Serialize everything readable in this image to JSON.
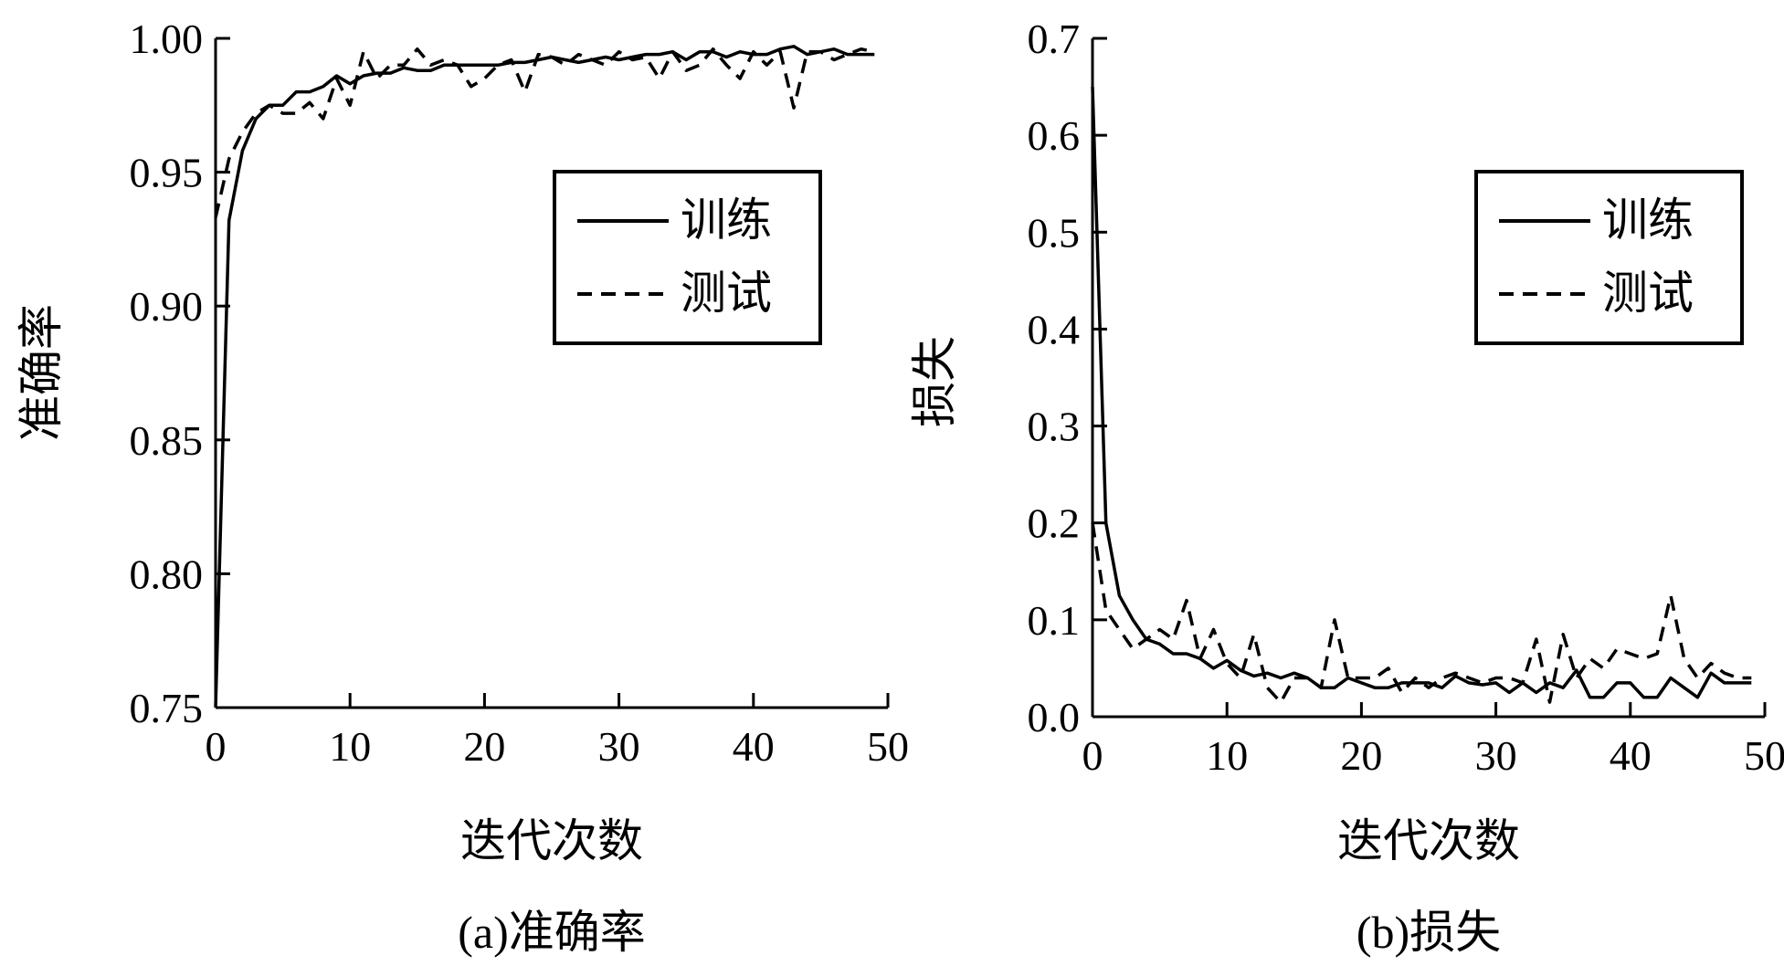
{
  "chart_data": [
    {
      "type": "line",
      "title": "",
      "caption": "(a)准确率",
      "xlabel": "迭代次数",
      "ylabel": "准确率",
      "xlim": [
        0,
        50
      ],
      "ylim": [
        0.75,
        1.0
      ],
      "xticks": [
        "0",
        "10",
        "20",
        "30",
        "40",
        "50"
      ],
      "yticks": [
        "0.75",
        "0.80",
        "0.85",
        "0.90",
        "0.95",
        "1.00"
      ],
      "grid": false,
      "legend": "right",
      "series": [
        {
          "name": "训练",
          "style": "solid",
          "x": [
            0,
            1,
            2,
            3,
            4,
            5,
            6,
            7,
            8,
            9,
            10,
            11,
            12,
            13,
            14,
            15,
            16,
            17,
            18,
            19,
            20,
            21,
            22,
            23,
            24,
            25,
            26,
            27,
            28,
            29,
            30,
            31,
            32,
            33,
            34,
            35,
            36,
            37,
            38,
            39,
            40,
            41,
            42,
            43,
            44,
            45,
            46,
            47,
            48,
            49
          ],
          "values": [
            0.75,
            0.932,
            0.958,
            0.97,
            0.975,
            0.975,
            0.98,
            0.98,
            0.982,
            0.986,
            0.983,
            0.986,
            0.987,
            0.987,
            0.989,
            0.988,
            0.988,
            0.99,
            0.99,
            0.99,
            0.99,
            0.99,
            0.991,
            0.991,
            0.992,
            0.993,
            0.992,
            0.991,
            0.992,
            0.993,
            0.992,
            0.993,
            0.994,
            0.994,
            0.995,
            0.992,
            0.995,
            0.995,
            0.993,
            0.995,
            0.994,
            0.994,
            0.996,
            0.997,
            0.994,
            0.995,
            0.996,
            0.994,
            0.994,
            0.994
          ]
        },
        {
          "name": "测试",
          "style": "dashed",
          "x": [
            0,
            1,
            2,
            3,
            4,
            5,
            6,
            7,
            8,
            9,
            10,
            11,
            12,
            13,
            14,
            15,
            16,
            17,
            18,
            19,
            20,
            21,
            22,
            23,
            24,
            25,
            26,
            27,
            28,
            29,
            30,
            31,
            32,
            33,
            34,
            35,
            36,
            37,
            38,
            39,
            40,
            41,
            42,
            43,
            44,
            45,
            46,
            47,
            48,
            49
          ],
          "values": [
            0.933,
            0.955,
            0.965,
            0.972,
            0.975,
            0.972,
            0.972,
            0.976,
            0.97,
            0.985,
            0.975,
            0.995,
            0.985,
            0.99,
            0.99,
            0.996,
            0.99,
            0.992,
            0.99,
            0.982,
            0.985,
            0.99,
            0.992,
            0.98,
            0.994,
            0.993,
            0.99,
            0.994,
            0.992,
            0.99,
            0.995,
            0.992,
            0.993,
            0.985,
            0.995,
            0.988,
            0.99,
            0.996,
            0.99,
            0.985,
            0.995,
            0.99,
            0.995,
            0.974,
            0.995,
            0.995,
            0.992,
            0.994,
            0.996,
            0.995
          ]
        }
      ]
    },
    {
      "type": "line",
      "title": "",
      "caption": "(b)损失",
      "xlabel": "迭代次数",
      "ylabel": "损失",
      "xlim": [
        0,
        50
      ],
      "ylim": [
        0.0,
        0.7
      ],
      "xticks": [
        "0",
        "10",
        "20",
        "30",
        "40",
        "50"
      ],
      "yticks": [
        "0.0",
        "0.1",
        "0.2",
        "0.3",
        "0.4",
        "0.5",
        "0.6",
        "0.7"
      ],
      "grid": false,
      "legend": "top-right",
      "series": [
        {
          "name": "训练",
          "style": "solid",
          "x": [
            0,
            1,
            2,
            3,
            4,
            5,
            6,
            7,
            8,
            9,
            10,
            11,
            12,
            13,
            14,
            15,
            16,
            17,
            18,
            19,
            20,
            21,
            22,
            23,
            24,
            25,
            26,
            27,
            28,
            29,
            30,
            31,
            32,
            33,
            34,
            35,
            36,
            37,
            38,
            39,
            40,
            41,
            42,
            43,
            44,
            45,
            46,
            47,
            48,
            49
          ],
          "values": [
            0.65,
            0.2,
            0.125,
            0.1,
            0.08,
            0.075,
            0.065,
            0.065,
            0.06,
            0.05,
            0.058,
            0.048,
            0.042,
            0.045,
            0.04,
            0.045,
            0.04,
            0.03,
            0.03,
            0.04,
            0.035,
            0.03,
            0.03,
            0.035,
            0.035,
            0.035,
            0.03,
            0.042,
            0.035,
            0.033,
            0.035,
            0.025,
            0.035,
            0.025,
            0.035,
            0.03,
            0.048,
            0.02,
            0.02,
            0.035,
            0.035,
            0.02,
            0.02,
            0.04,
            0.03,
            0.02,
            0.045,
            0.035,
            0.035,
            0.035
          ]
        },
        {
          "name": "测试",
          "style": "dashed",
          "x": [
            0,
            1,
            2,
            3,
            4,
            5,
            6,
            7,
            8,
            9,
            10,
            11,
            12,
            13,
            14,
            15,
            16,
            17,
            18,
            19,
            20,
            21,
            22,
            23,
            24,
            25,
            26,
            27,
            28,
            29,
            30,
            31,
            32,
            33,
            34,
            35,
            36,
            37,
            38,
            39,
            40,
            41,
            42,
            43,
            44,
            45,
            46,
            47,
            48,
            49
          ],
          "values": [
            0.2,
            0.11,
            0.09,
            0.07,
            0.08,
            0.09,
            0.08,
            0.12,
            0.06,
            0.09,
            0.055,
            0.04,
            0.085,
            0.03,
            0.015,
            0.04,
            0.04,
            0.03,
            0.1,
            0.04,
            0.04,
            0.04,
            0.05,
            0.025,
            0.04,
            0.03,
            0.04,
            0.045,
            0.04,
            0.035,
            0.04,
            0.04,
            0.035,
            0.08,
            0.015,
            0.085,
            0.04,
            0.06,
            0.05,
            0.07,
            0.065,
            0.06,
            0.065,
            0.125,
            0.06,
            0.04,
            0.055,
            0.045,
            0.04,
            0.04
          ]
        }
      ]
    }
  ]
}
